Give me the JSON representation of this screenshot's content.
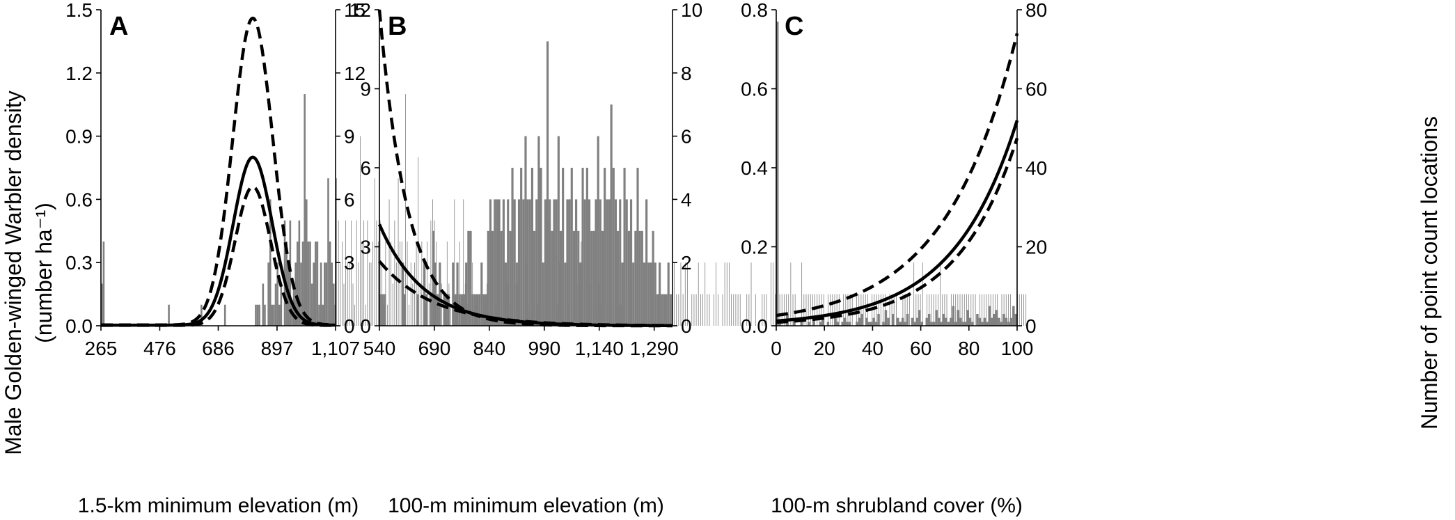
{
  "y_axis_label_line1": "Male Golden-winged Warbler density",
  "y_axis_label_line2": "(number ha⁻¹)",
  "right_axis_label": "Number of point count locations",
  "chart_data": [
    {
      "panel": "A",
      "type": "bar+line",
      "xlabel": "1.5-km minimum elevation (m)",
      "x_tick_labels": [
        "265",
        "476",
        "686",
        "897",
        "1,107"
      ],
      "xlim": [
        265,
        1107
      ],
      "left_axis": {
        "ticks": [
          "0.0",
          "0.3",
          "0.6",
          "0.9",
          "1.2",
          "1.5"
        ],
        "ylim": [
          0,
          1.5
        ]
      },
      "right_axis": {
        "ticks": [
          "0",
          "3",
          "6",
          "9",
          "12",
          "15"
        ],
        "ylim": [
          0,
          15
        ]
      },
      "histogram": {
        "series": "Number of point count locations",
        "bin_width": 6.5,
        "counts": [
          2,
          4,
          0,
          0,
          0,
          0,
          0,
          0,
          0,
          0,
          0,
          0,
          0,
          0,
          0,
          0,
          0,
          0,
          0,
          0,
          0,
          0,
          0,
          0,
          0,
          0,
          0,
          0,
          0,
          0,
          0,
          0,
          0,
          0,
          0,
          0,
          0,
          1,
          0,
          0,
          0,
          0,
          0,
          0,
          0,
          0,
          0,
          0,
          0,
          0,
          0,
          0,
          0,
          0,
          0,
          1,
          0,
          0,
          0,
          0,
          0,
          0,
          0,
          0,
          0,
          0,
          0,
          0,
          1,
          0,
          0,
          0,
          0,
          0,
          0,
          0,
          0,
          0,
          0,
          0,
          0,
          0,
          0,
          0,
          0,
          1,
          1,
          1,
          0,
          2,
          1,
          0,
          3,
          6,
          1,
          1,
          2,
          3,
          1,
          2,
          0,
          5,
          4,
          3,
          5,
          1,
          2,
          3,
          4,
          5,
          3,
          4,
          11,
          6,
          4,
          4,
          2,
          3,
          4,
          4,
          1,
          3,
          1,
          3,
          3,
          7,
          4,
          3,
          2,
          1,
          7,
          5,
          3,
          4,
          2,
          5,
          3,
          3,
          5,
          2,
          1,
          5,
          3,
          9,
          4,
          5,
          1,
          5,
          3,
          3,
          4,
          7,
          5,
          4,
          5,
          3,
          1,
          4,
          1,
          6,
          4,
          2,
          5,
          3,
          7,
          4,
          4,
          3,
          11,
          4,
          1,
          3,
          2,
          3,
          4,
          8,
          2,
          4,
          3,
          1,
          4,
          2,
          5,
          6,
          5,
          4,
          1,
          3,
          2,
          1,
          1,
          4,
          2,
          1,
          2,
          6,
          1,
          2,
          4,
          1,
          6,
          2,
          1,
          1,
          1,
          3,
          1,
          1,
          1,
          1,
          1,
          1,
          1,
          2,
          3,
          2,
          1,
          2,
          1,
          2,
          2,
          1,
          3,
          2,
          2,
          1,
          3,
          3,
          2,
          2,
          2,
          3,
          4,
          2,
          1,
          3,
          1,
          3,
          2,
          1,
          1,
          1,
          2,
          3,
          1,
          1,
          2,
          5,
          3,
          2,
          1,
          1,
          1,
          3,
          2,
          1,
          1,
          1,
          1,
          6,
          1,
          1,
          1,
          2,
          3,
          4,
          1,
          1,
          1,
          1,
          2,
          1,
          1,
          1,
          1,
          2,
          1,
          1,
          1,
          1,
          1,
          1,
          3,
          5,
          1,
          1,
          1,
          1,
          1,
          1,
          1,
          3,
          2,
          4
        ]
      },
      "curves": {
        "mean": {
          "peak_x": 810,
          "peak_y": 0.8,
          "sd": 70,
          "floor": 0.003
        },
        "upper": {
          "peak_x": 810,
          "peak_y": 1.46,
          "sd": 72,
          "floor": 0.004
        },
        "lower": {
          "peak_x": 810,
          "peak_y": 0.66,
          "sd": 64,
          "floor": 0.002
        }
      },
      "legend": "none"
    },
    {
      "panel": "B",
      "type": "bar+line",
      "xlabel": "100-m minimum elevation (m)",
      "x_tick_labels": [
        "540",
        "690",
        "840",
        "990",
        "1,140",
        "1,290"
      ],
      "xlim": [
        540,
        1340
      ],
      "left_axis": {
        "ticks": [
          "0",
          "3",
          "6",
          "9",
          "12"
        ],
        "ylim": [
          0,
          12
        ]
      },
      "right_axis": {
        "ticks": [
          "0",
          "2",
          "4",
          "6",
          "8",
          "10"
        ],
        "ylim": [
          0,
          10
        ]
      },
      "histogram": {
        "series": "Number of point count locations",
        "bin_width": 6,
        "counts": [
          1,
          1,
          1,
          0,
          0,
          0,
          0,
          0,
          0,
          0,
          2,
          1,
          0,
          0,
          0,
          0,
          0,
          1,
          0,
          0,
          2,
          1,
          0,
          1,
          3,
          2,
          1,
          2,
          0,
          1,
          1,
          1,
          0,
          2,
          1,
          2,
          1,
          1,
          1,
          2,
          3,
          3,
          1,
          1,
          1,
          1,
          2,
          1,
          1,
          3,
          4,
          3,
          4,
          4,
          4,
          3,
          4,
          2,
          4,
          3,
          5,
          4,
          2,
          4,
          5,
          4,
          6,
          4,
          4,
          5,
          3,
          4,
          6,
          5,
          2,
          4,
          9,
          4,
          3,
          4,
          4,
          6,
          3,
          5,
          2,
          4,
          4,
          5,
          3,
          4,
          3,
          2,
          5,
          4,
          5,
          4,
          3,
          3,
          4,
          6,
          4,
          3,
          5,
          4,
          4,
          7,
          5,
          4,
          3,
          4,
          2,
          5,
          4,
          3,
          4,
          2,
          3,
          5,
          3,
          3,
          2,
          4,
          2,
          2,
          3,
          2,
          1,
          2,
          1,
          1,
          1,
          2,
          1,
          0,
          2,
          1,
          1,
          2,
          1,
          2,
          2,
          0,
          1,
          1,
          1,
          2,
          1,
          1,
          2,
          1,
          1,
          0,
          1,
          2,
          1,
          0,
          1,
          2,
          2,
          2,
          1,
          1,
          1,
          1,
          1,
          0,
          0,
          1,
          1,
          2,
          0,
          1,
          0,
          0,
          1,
          1,
          1,
          0,
          2,
          2,
          1,
          0,
          1,
          1,
          1,
          1,
          1,
          2,
          1,
          1,
          0,
          0,
          2,
          1,
          1,
          1,
          1,
          1,
          1,
          1,
          1,
          1,
          1,
          0,
          1,
          1,
          1,
          1,
          1,
          1,
          0,
          1,
          1,
          1,
          1,
          1,
          0,
          1,
          1,
          1,
          1,
          1,
          1,
          0,
          1,
          1,
          1,
          1,
          1,
          1,
          1,
          0,
          1,
          1,
          1,
          1,
          0,
          0,
          1,
          1,
          1,
          1,
          0,
          2,
          1,
          1,
          1,
          2,
          0,
          1,
          1,
          1,
          1,
          1,
          1,
          2,
          1,
          1,
          1,
          0,
          1,
          1,
          1,
          1,
          1,
          1,
          1,
          1,
          1,
          1,
          1,
          1,
          0,
          1,
          1,
          1,
          1,
          1,
          1,
          1,
          1,
          1,
          0,
          1,
          1,
          1,
          1,
          1,
          0,
          0,
          2,
          1,
          1,
          1,
          1,
          0,
          0,
          0
        ]
      },
      "curves": {
        "mean": {
          "y_at_start": 3.85,
          "decay_per_m": 0.0083
        },
        "upper": {
          "y_at_start": 12.0,
          "decay_per_m": 0.0129
        },
        "lower": {
          "y_at_start": 2.45,
          "decay_per_m": 0.0068
        }
      },
      "legend": "none"
    },
    {
      "panel": "C",
      "type": "bar+line",
      "xlabel": "100-m shrubland cover (%)",
      "x_tick_labels": [
        "0",
        "20",
        "40",
        "60",
        "80",
        "100"
      ],
      "xlim": [
        0,
        100
      ],
      "left_axis": {
        "ticks": [
          "0.0",
          "0.2",
          "0.4",
          "0.6",
          "0.8"
        ],
        "ylim": [
          0,
          0.8
        ]
      },
      "right_axis": {
        "ticks": [
          "0",
          "20",
          "40",
          "60",
          "80"
        ],
        "ylim": [
          0,
          80
        ]
      },
      "histogram": {
        "series": "Number of point count locations",
        "bin_width": 1,
        "counts": [
          77,
          1,
          0,
          0,
          3,
          0,
          0,
          2,
          0,
          0,
          1,
          0,
          0,
          1,
          0,
          2,
          0,
          0,
          1,
          2,
          0,
          1,
          0,
          0,
          2,
          1,
          0,
          1,
          2,
          1,
          1,
          0,
          0,
          1,
          2,
          3,
          0,
          2,
          1,
          1,
          2,
          1,
          3,
          0,
          1,
          4,
          2,
          0,
          3,
          0,
          2,
          1,
          2,
          1,
          3,
          0,
          2,
          1,
          2,
          4,
          1,
          0,
          2,
          3,
          1,
          1,
          4,
          2,
          1,
          3,
          2,
          1,
          2,
          5,
          1,
          4,
          2,
          1,
          1,
          4,
          2,
          1,
          0,
          3,
          2,
          1,
          2,
          1,
          5,
          2,
          3,
          4,
          2,
          1,
          3,
          2,
          1,
          2,
          5,
          3,
          8
        ]
      },
      "curves": {
        "mean": {
          "y_at_0": 0.0122,
          "y_at_100": 0.52
        },
        "upper": {
          "y_at_0": 0.0262,
          "y_at_100": 0.74
        },
        "lower": {
          "y_at_0": 0.0088,
          "y_at_100": 0.475
        }
      },
      "legend": "none"
    }
  ]
}
